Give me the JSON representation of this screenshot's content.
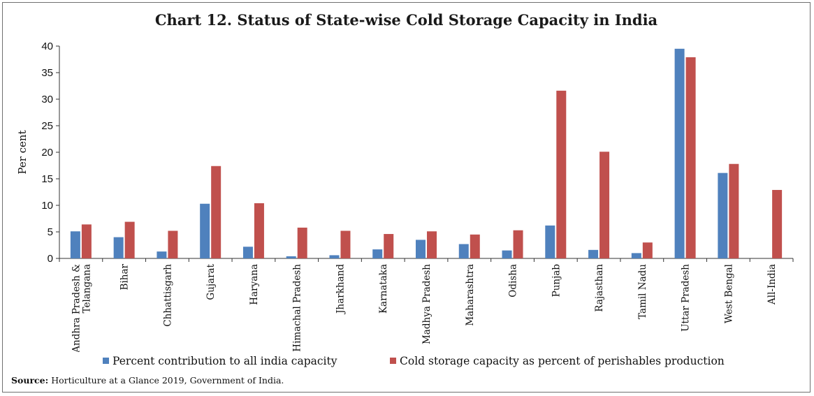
{
  "chart_data": {
    "type": "bar",
    "title": "Chart 12. Status of State-wise Cold Storage  Capacity in India",
    "ylabel": "Per cent",
    "xlabel": "",
    "ylim": [
      0,
      40
    ],
    "yticks": [
      0,
      5,
      10,
      15,
      20,
      25,
      30,
      35,
      40
    ],
    "categories": [
      [
        "Andhra Pradesh &",
        "Telangana"
      ],
      [
        "Bihar"
      ],
      [
        "Chhattisgarh"
      ],
      [
        "Gujarat"
      ],
      [
        "Haryana"
      ],
      [
        "Himachal Pradesh"
      ],
      [
        "Jharkhand"
      ],
      [
        "Karnataka"
      ],
      [
        "Madhya Pradesh"
      ],
      [
        "Maharashtra"
      ],
      [
        "Odisha"
      ],
      [
        "Punjab"
      ],
      [
        "Rajasthan"
      ],
      [
        "Tamil Nadu"
      ],
      [
        "Uttar Pradesh"
      ],
      [
        "West Bengal"
      ],
      [
        "All-India"
      ]
    ],
    "series": [
      {
        "name": "Percent contribution to all india capacity",
        "color": "#4f81bd",
        "values": [
          5.1,
          4.0,
          1.3,
          10.3,
          2.2,
          0.4,
          0.6,
          1.7,
          3.5,
          2.7,
          1.5,
          6.2,
          1.6,
          1.0,
          39.5,
          16.1,
          null
        ]
      },
      {
        "name": "Cold storage capacity as percent of perishables production",
        "color": "#c0504d",
        "values": [
          6.4,
          6.9,
          5.2,
          17.4,
          10.4,
          5.8,
          5.2,
          4.6,
          5.1,
          4.5,
          5.3,
          31.6,
          20.1,
          3.0,
          37.9,
          17.8,
          12.9
        ]
      }
    ],
    "grid": false,
    "legend_position": "bottom"
  },
  "source": {
    "label": "Source:",
    "text": " Horticulture at a Glance 2019, Government of India."
  }
}
